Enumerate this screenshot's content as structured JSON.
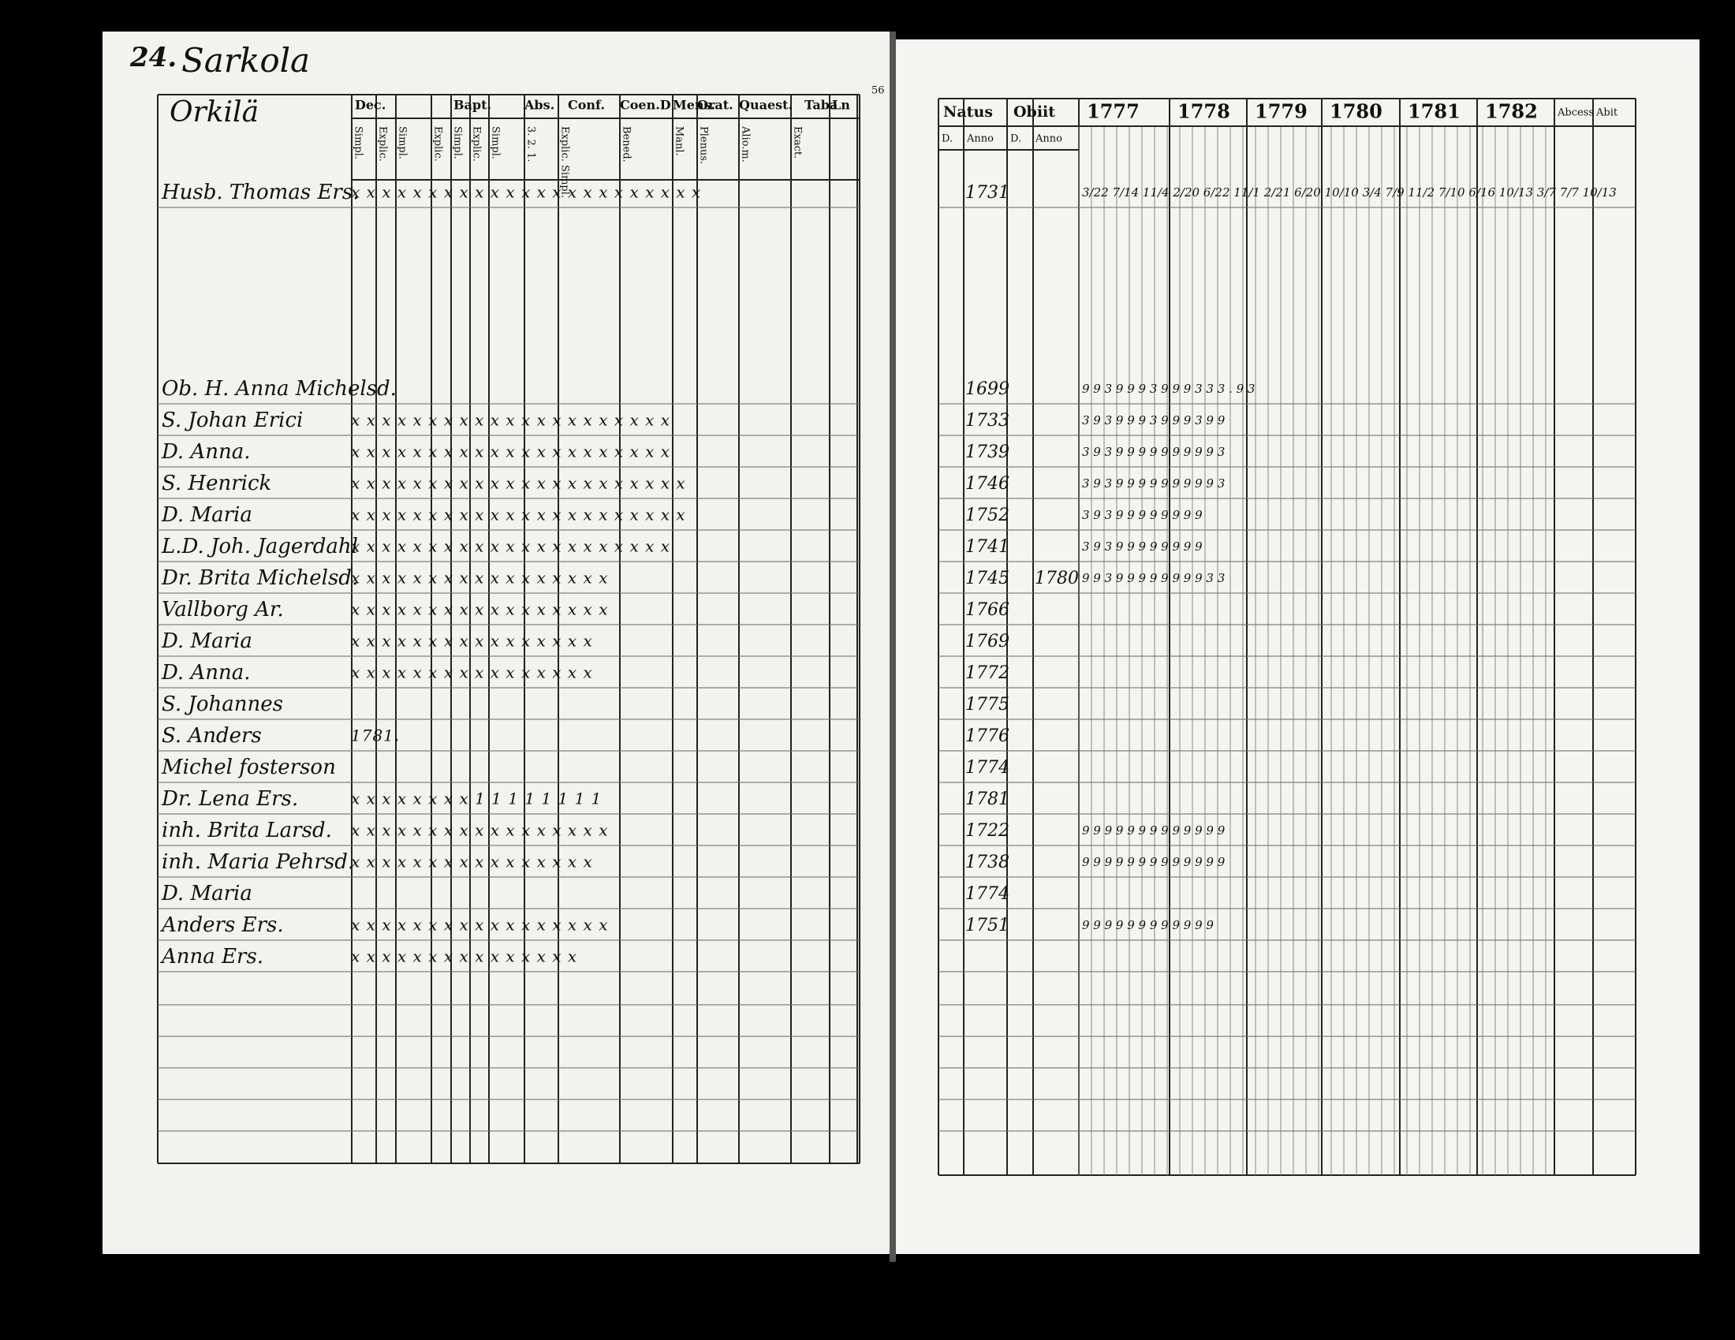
{
  "header": {
    "page_number": "24.",
    "village": "Sarkola",
    "farm": "Orkilä",
    "folio": "56"
  },
  "left_columns": [
    "Dec.",
    "Bapt.",
    "Abs.",
    "Conf.",
    "Coen.D",
    "Mens.",
    "Orat.",
    "Quaest.",
    "Taba",
    "Ln"
  ],
  "left_subcolumns": [
    "Simpl.",
    "Explic.",
    "Simpl.",
    "Explic.",
    "Simpl.",
    "Explic.",
    "Simpl.",
    "3. 2. 1.",
    "Explic. Simpl.",
    "Bened.",
    "Manl.",
    "Plenus.",
    "Alio.m.",
    "Exact."
  ],
  "right_columns": {
    "natus": "Natus",
    "obiit": "Obiit",
    "years": [
      "1777",
      "1778",
      "1779",
      "1780",
      "1781",
      "1782"
    ],
    "abcess": "Abcess",
    "abit": "Abit",
    "day": "D.",
    "anno": "Anno"
  },
  "first_row": {
    "name": "Husb. Thomas Ers.",
    "marks": "x x  x x x  x x  x x x  x x  x x x  x x  x x x  x x  x",
    "born": "1731",
    "notes": "3/22 7/14 11/4   2/20 6/22 11/1   2/21 6/20 10/10   3/4 7/9 11/2   7/10 6/16 10/13   3/7 7/7 10/13"
  },
  "rows": [
    {
      "name": "Ob. H. Anna Michelsd.",
      "marks": "",
      "born": "1699",
      "died": "",
      "notes": "9 9 3   9 9   9 3   9 9 9 3   3 3 .   9 3"
    },
    {
      "name": "S. Johan Erici",
      "marks": "x x  x x x  x x  x x x  x x x  x x  x x  x x  x x",
      "born": "1733",
      "died": "",
      "notes": "3 9 3   9 9   9 3   9 9   9 3   9 9"
    },
    {
      "name": "D. Anna.",
      "marks": "x x  x x x  x x  x x x  x x x  x x  x x  x x  x x",
      "born": "1739",
      "died": "",
      "notes": "3 9 3   9 9   9 9   9 9   9 9   9 3"
    },
    {
      "name": "S. Henrick",
      "marks": "x x  x x x  x x  x x x  x x x  x x  x x  x x x  x x",
      "born": "1746",
      "died": "",
      "notes": "3 9 3   9 9   9 9   9 9   9 9   9 3"
    },
    {
      "name": "D. Maria",
      "marks": "x x  x x x  x x  x x x  x x x  x x  x x  x x x  x x",
      "born": "1752",
      "died": "",
      "notes": "3 9 3   9 9   9 9   9 9   9 9"
    },
    {
      "name": "L.D. Joh. Jagerdahl",
      "marks": "x x  x x x  x x  x x x  x x x  x x  x x  x x  x x",
      "born": "1741",
      "died": "",
      "notes": "3 9 3   9 9   9 9   9 9   9 9"
    },
    {
      "name": "Dr. Brita Michelsd.",
      "marks": "x x  x x x  x x  x x x  x x x  x x  x x",
      "born": "1745",
      "died": "1780",
      "notes": "9 9 3   9 9   9 9   9 9   9 9 3   3"
    },
    {
      "name": "Vallborg Ar.",
      "marks": "x x  x x x  x x  x x x  x x x  x x  x x",
      "born": "1766",
      "died": "",
      "notes": ""
    },
    {
      "name": "D. Maria",
      "marks": "x x  x x x  x x  x x x  x x x  x x  x",
      "born": "1769",
      "died": "",
      "notes": ""
    },
    {
      "name": "D. Anna.",
      "marks": "x x  x x  x x  x x x  x x x  x x  x x",
      "born": "1772",
      "died": "",
      "notes": ""
    },
    {
      "name": "S. Johannes",
      "marks": "",
      "born": "1775",
      "died": "",
      "notes": ""
    },
    {
      "name": "S. Anders",
      "marks": "1781.",
      "born": "1776",
      "died": "",
      "notes": ""
    },
    {
      "name": "Michel fosterson",
      "marks": "",
      "born": "1774",
      "died": "",
      "notes": ""
    },
    {
      "name": "Dr. Lena Ers.",
      "marks": "x x  x x  x x  x x  1 1 1  1 1  1 1  1",
      "born": "1781",
      "died": "",
      "notes": ""
    },
    {
      "name": "inh. Brita Larsd.",
      "marks": "x x  x x x  x x  x x x  x x x  x x  x x",
      "born": "1722",
      "died": "",
      "notes": "9 9 9   9 9   9 9   9 9   9 9   9 9"
    },
    {
      "name": "inh. Maria Pehrsd.",
      "marks": "x x  x x  x x  x x x  x x x  x x  x x",
      "born": "1738",
      "died": "",
      "notes": "9 9 9   9 9   9 9   9 9   9 9   9 9"
    },
    {
      "name": "D. Maria",
      "marks": "",
      "born": "1774",
      "died": "",
      "notes": ""
    },
    {
      "name": "Anders Ers.",
      "marks": "x x  x x x  x x  x x x  x x x  x x  x x",
      "born": "1751",
      "died": "",
      "notes": "9 9   9 9   9 9   9 9   9 9   9 9"
    },
    {
      "name": "Anna Ers.",
      "marks": "x x  x x x  x x  x x x  x x x  x x",
      "born": "",
      "died": "",
      "notes": ""
    }
  ]
}
